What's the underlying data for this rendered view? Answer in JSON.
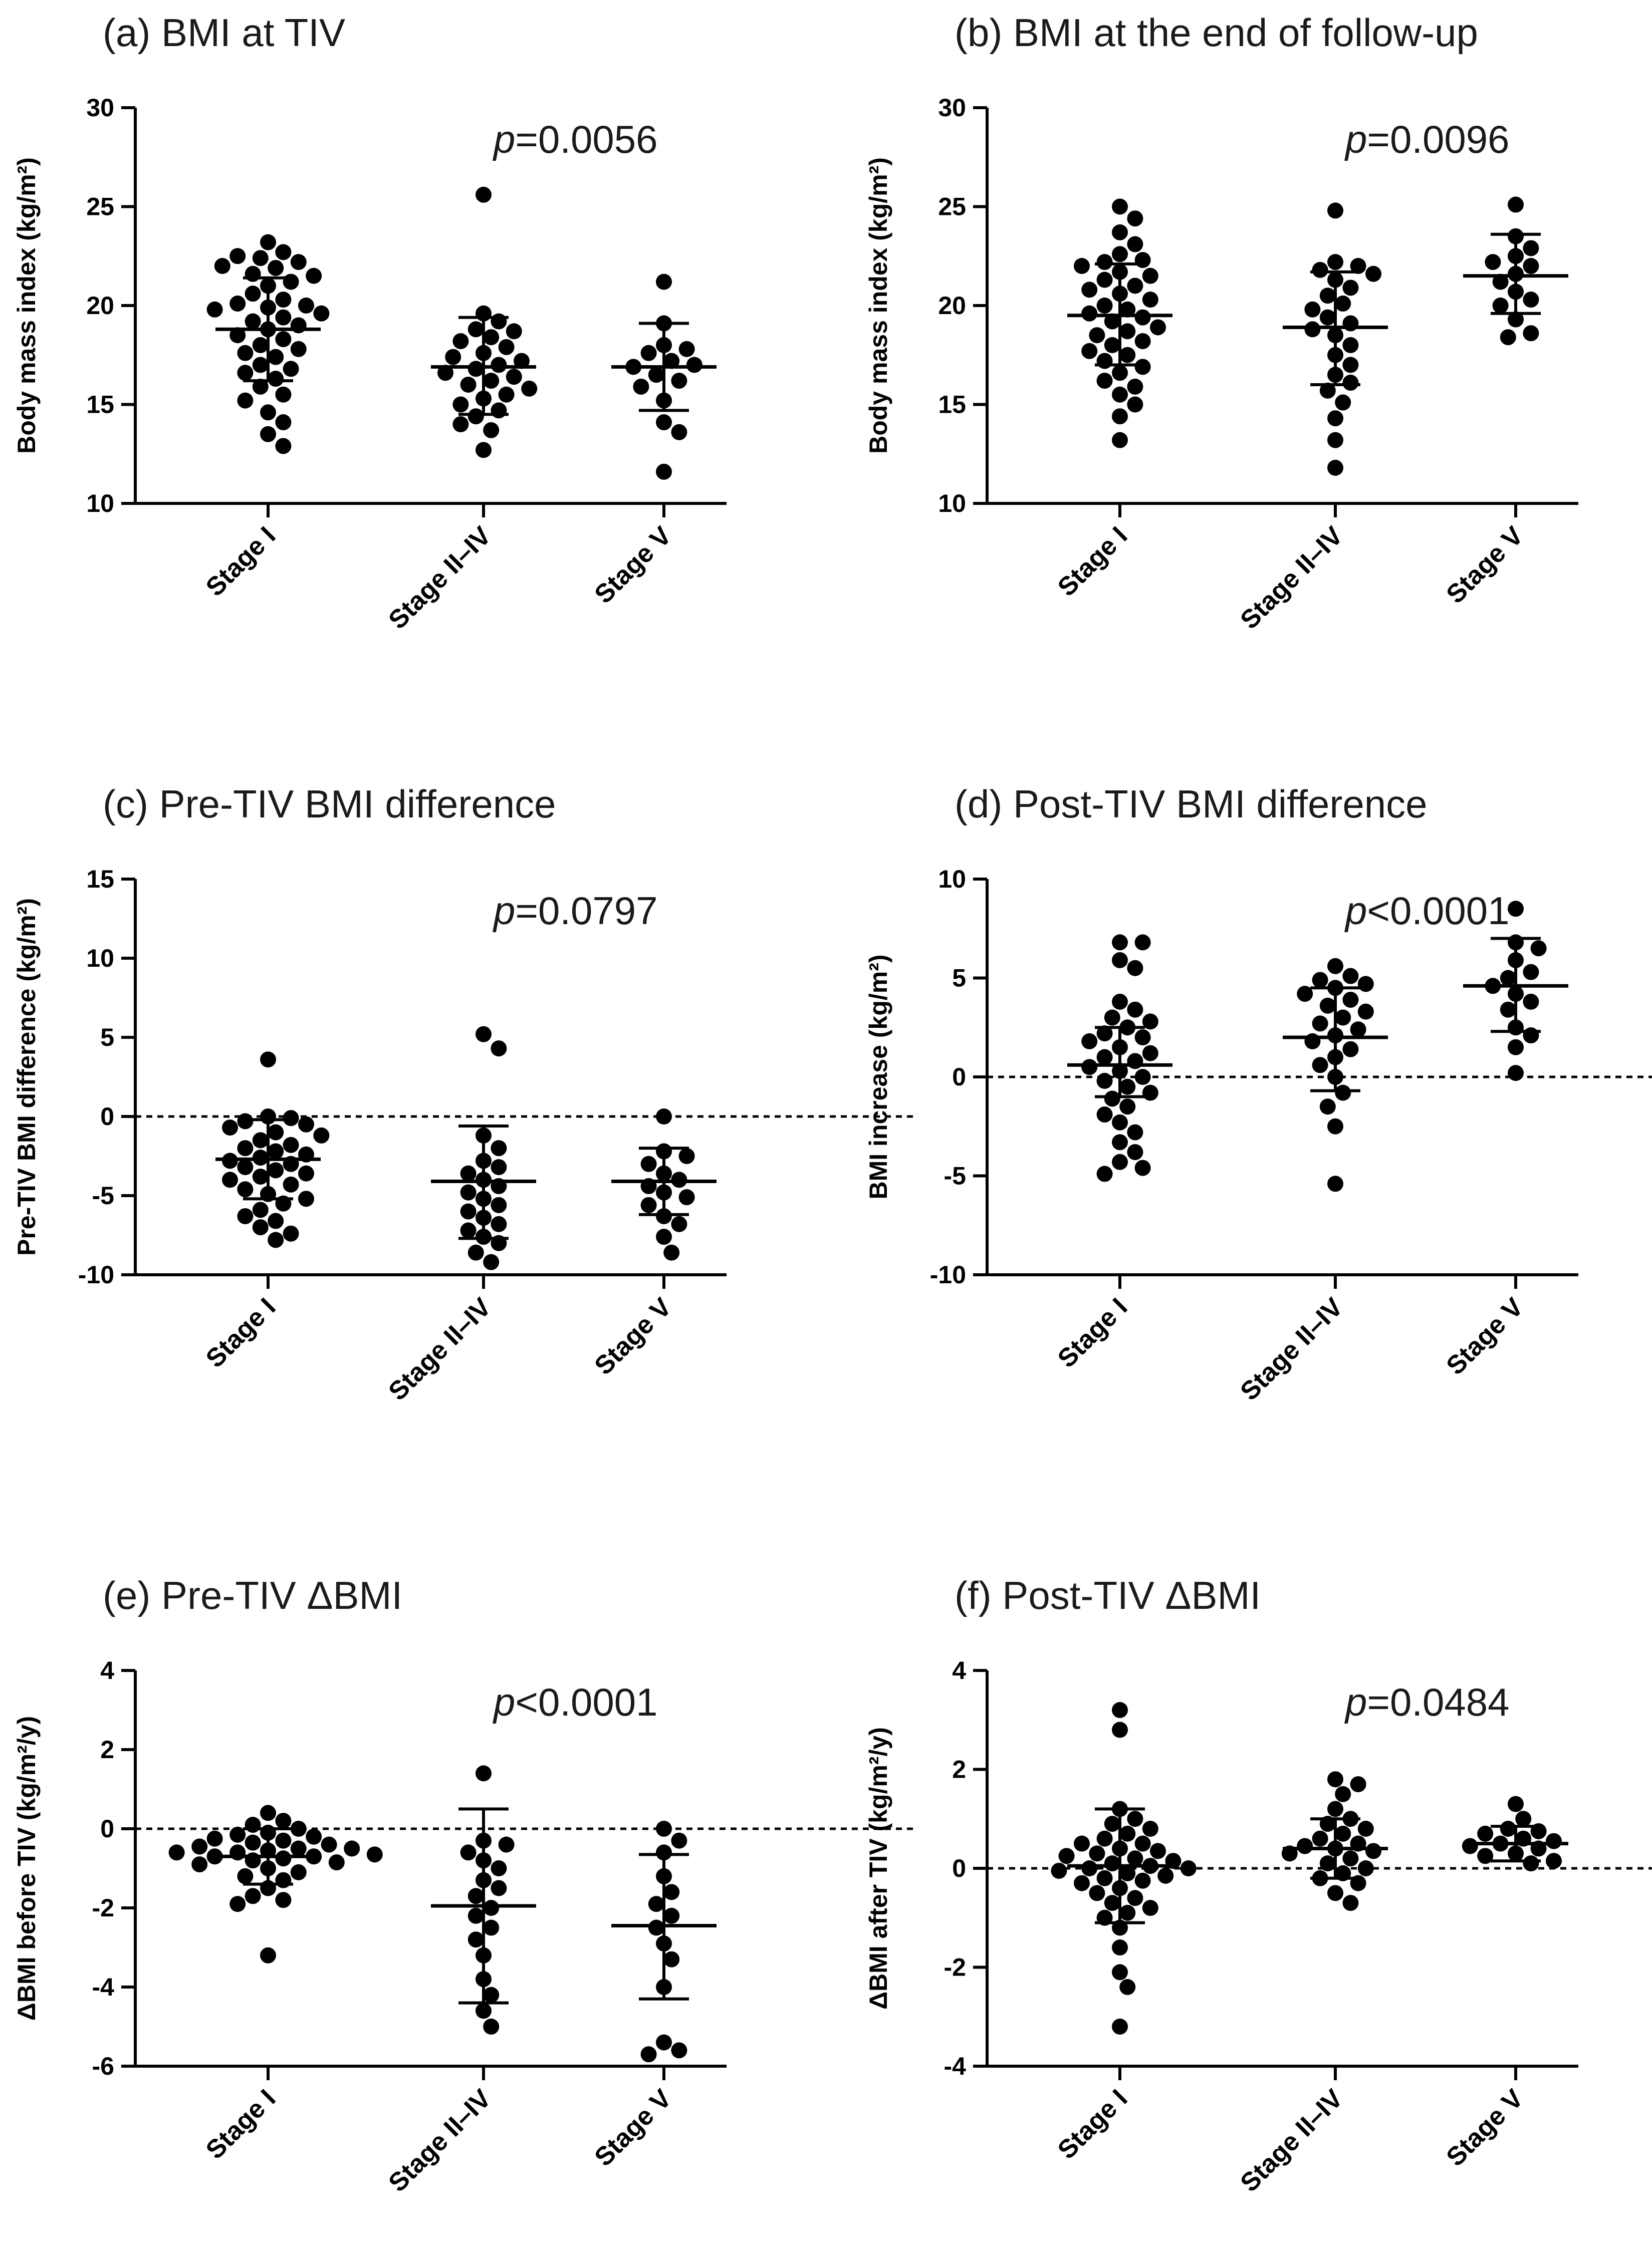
{
  "figure": {
    "background": "#ffffff",
    "point_color": "#000000"
  },
  "chart_data": [
    {
      "id": "a",
      "type": "scatter",
      "title": "(a) BMI at TIV",
      "ylabel": "Body mass index (kg/m²)",
      "ylim": [
        10,
        30
      ],
      "yticks": [
        10,
        15,
        20,
        25,
        30
      ],
      "categories": [
        "Stage I",
        "Stage II–IV",
        "Stage V"
      ],
      "p_prefix": "p",
      "p_suffix": "=0.0056",
      "reference_line": null,
      "series": [
        {
          "name": "Stage I",
          "mean": 18.8,
          "sd_low": 16.2,
          "sd_high": 21.4,
          "values": [
            23.2,
            22.7,
            22.4,
            22.5,
            22.2,
            22.0,
            21.9,
            21.6,
            21.5,
            21.2,
            21.0,
            20.6,
            20.3,
            20.1,
            20.0,
            19.9,
            19.8,
            19.6,
            19.4,
            19.2,
            19.0,
            18.8,
            18.5,
            18.3,
            18.0,
            17.8,
            17.6,
            17.4,
            17.0,
            16.8,
            16.6,
            16.3,
            15.9,
            15.5,
            15.2,
            14.6,
            14.1,
            13.5,
            12.9
          ]
        },
        {
          "name": "Stage II–IV",
          "mean": 16.9,
          "sd_low": 14.5,
          "sd_high": 19.4,
          "values": [
            25.6,
            19.6,
            19.2,
            18.8,
            18.7,
            18.4,
            18.2,
            17.9,
            17.6,
            17.4,
            17.2,
            17.0,
            16.8,
            16.6,
            16.4,
            16.2,
            16.0,
            15.8,
            15.5,
            15.3,
            15.0,
            14.7,
            14.4,
            14.0,
            13.7,
            12.7
          ]
        },
        {
          "name": "Stage V",
          "mean": 16.9,
          "sd_low": 14.7,
          "sd_high": 19.1,
          "values": [
            21.2,
            19.1,
            18.0,
            17.8,
            17.6,
            17.2,
            17.0,
            16.9,
            16.5,
            16.2,
            15.9,
            15.2,
            14.1,
            13.6,
            11.6
          ]
        }
      ]
    },
    {
      "id": "b",
      "type": "scatter",
      "title": "(b) BMI at the end of follow-up",
      "ylabel": "Body mass index (kg/m²)",
      "ylim": [
        10,
        30
      ],
      "yticks": [
        10,
        15,
        20,
        25,
        30
      ],
      "categories": [
        "Stage I",
        "Stage II–IV",
        "Stage V"
      ],
      "p_prefix": "p",
      "p_suffix": "=0.0096",
      "reference_line": null,
      "series": [
        {
          "name": "Stage I",
          "mean": 19.5,
          "sd_low": 17.0,
          "sd_high": 22.1,
          "values": [
            25.0,
            24.4,
            23.7,
            23.1,
            22.6,
            22.3,
            22.2,
            22.0,
            21.7,
            21.5,
            21.3,
            21.0,
            20.8,
            20.6,
            20.3,
            20.0,
            19.8,
            19.6,
            19.4,
            19.2,
            18.9,
            18.7,
            18.5,
            18.2,
            18.0,
            17.7,
            17.5,
            17.2,
            16.9,
            16.6,
            16.2,
            15.9,
            15.5,
            15.0,
            14.4,
            13.2
          ]
        },
        {
          "name": "Stage II–IV",
          "mean": 18.9,
          "sd_low": 16.0,
          "sd_high": 21.7,
          "values": [
            24.8,
            22.2,
            22.0,
            21.8,
            21.6,
            21.3,
            20.9,
            20.5,
            20.1,
            19.8,
            19.4,
            19.1,
            18.8,
            18.5,
            18.0,
            17.5,
            17.0,
            16.5,
            16.1,
            15.7,
            15.1,
            14.3,
            13.2,
            11.8
          ]
        },
        {
          "name": "Stage V",
          "mean": 21.5,
          "sd_low": 19.6,
          "sd_high": 23.6,
          "values": [
            25.1,
            23.5,
            22.9,
            22.5,
            22.2,
            22.0,
            21.6,
            21.2,
            20.7,
            20.3,
            20.0,
            19.3,
            18.6,
            18.4
          ]
        }
      ]
    },
    {
      "id": "c",
      "type": "scatter",
      "title": "(c) Pre-TIV BMI difference",
      "ylabel": "Pre-TIV BMI difference (kg/m²)",
      "ylim": [
        -10,
        15
      ],
      "yticks": [
        -10,
        -5,
        0,
        5,
        10,
        15
      ],
      "categories": [
        "Stage I",
        "Stage II–IV",
        "Stage V"
      ],
      "p_prefix": "p",
      "p_suffix": "=0.0797",
      "reference_line": 0,
      "series": [
        {
          "name": "Stage I",
          "mean": -2.7,
          "sd_low": -5.2,
          "sd_high": -0.2,
          "values": [
            3.6,
            0.0,
            -0.1,
            -0.3,
            -0.5,
            -0.7,
            -1.0,
            -1.2,
            -1.5,
            -1.8,
            -2.0,
            -2.2,
            -2.4,
            -2.6,
            -2.8,
            -3.0,
            -3.2,
            -3.4,
            -3.6,
            -3.8,
            -4.0,
            -4.3,
            -4.6,
            -4.9,
            -5.2,
            -5.5,
            -5.9,
            -6.3,
            -6.6,
            -7.0,
            -7.4,
            -7.8
          ]
        },
        {
          "name": "Stage II–IV",
          "mean": -4.1,
          "sd_low": -7.7,
          "sd_high": -0.6,
          "values": [
            5.2,
            4.3,
            -1.2,
            -2.0,
            -2.8,
            -3.2,
            -3.6,
            -4.0,
            -4.4,
            -4.8,
            -5.2,
            -5.6,
            -6.0,
            -6.4,
            -6.8,
            -7.2,
            -7.6,
            -8.0,
            -8.6,
            -9.2
          ]
        },
        {
          "name": "Stage V",
          "mean": -4.1,
          "sd_low": -6.2,
          "sd_high": -2.0,
          "values": [
            0.0,
            -2.2,
            -2.5,
            -3.0,
            -3.6,
            -4.0,
            -4.4,
            -4.8,
            -5.1,
            -5.6,
            -6.3,
            -6.8,
            -7.6,
            -8.6
          ]
        }
      ]
    },
    {
      "id": "d",
      "type": "scatter",
      "title": "(d) Post-TIV BMI difference",
      "ylabel": "BMI increase (kg/m²)",
      "ylim": [
        -10,
        10
      ],
      "yticks": [
        -10,
        -5,
        0,
        5,
        10
      ],
      "categories": [
        "Stage I",
        "Stage II–IV",
        "Stage V"
      ],
      "p_prefix": "p",
      "p_suffix": "<0.0001",
      "reference_line": 0,
      "series": [
        {
          "name": "Stage I",
          "mean": 0.6,
          "sd_low": -1.0,
          "sd_high": 2.5,
          "values": [
            6.8,
            6.8,
            5.9,
            5.5,
            3.8,
            3.4,
            3.0,
            2.8,
            2.5,
            2.2,
            2.0,
            1.8,
            1.5,
            1.2,
            1.0,
            0.8,
            0.5,
            0.3,
            0.0,
            -0.2,
            -0.5,
            -0.8,
            -1.1,
            -1.5,
            -1.9,
            -2.3,
            -2.8,
            -3.3,
            -3.8,
            -4.3,
            -4.6,
            -4.9
          ]
        },
        {
          "name": "Stage II–IV",
          "mean": 2.0,
          "sd_low": -0.7,
          "sd_high": 4.5,
          "values": [
            5.6,
            5.1,
            4.9,
            4.7,
            4.5,
            4.2,
            3.9,
            3.6,
            3.3,
            3.0,
            2.7,
            2.4,
            2.1,
            1.8,
            1.4,
            1.0,
            0.6,
            0.0,
            -0.8,
            -1.5,
            -2.5,
            -5.4
          ]
        },
        {
          "name": "Stage V",
          "mean": 4.6,
          "sd_low": 2.3,
          "sd_high": 7.0,
          "values": [
            8.5,
            6.8,
            6.5,
            5.9,
            5.3,
            5.0,
            4.6,
            4.2,
            3.8,
            3.4,
            2.5,
            2.1,
            1.5,
            0.2
          ]
        }
      ]
    },
    {
      "id": "e",
      "type": "scatter",
      "title": "(e) Pre-TIV ΔBMI",
      "ylabel": "ΔBMI before TIV (kg/m²/y)",
      "ylim": [
        -6,
        4
      ],
      "yticks": [
        -6,
        -4,
        -2,
        0,
        2,
        4
      ],
      "categories": [
        "Stage I",
        "Stage II–IV",
        "Stage V"
      ],
      "p_prefix": "p",
      "p_suffix": "<0.0001",
      "reference_line": 0,
      "series": [
        {
          "name": "Stage I",
          "mean": -0.7,
          "sd_low": -1.4,
          "sd_high": 0.0,
          "values": [
            0.4,
            0.2,
            0.1,
            0.0,
            -0.1,
            -0.15,
            -0.2,
            -0.25,
            -0.3,
            -0.35,
            -0.4,
            -0.45,
            -0.5,
            -0.5,
            -0.55,
            -0.6,
            -0.6,
            -0.65,
            -0.7,
            -0.7,
            -0.75,
            -0.8,
            -0.85,
            -0.9,
            -1.0,
            -1.1,
            -1.2,
            -1.3,
            -1.5,
            -1.7,
            -1.8,
            -1.9,
            -3.2
          ]
        },
        {
          "name": "Stage II–IV",
          "mean": -1.95,
          "sd_low": -4.4,
          "sd_high": 0.5,
          "values": [
            1.4,
            -0.3,
            -0.4,
            -0.6,
            -0.8,
            -1.0,
            -1.3,
            -1.5,
            -1.7,
            -2.0,
            -2.2,
            -2.5,
            -2.8,
            -3.2,
            -3.8,
            -4.2,
            -4.6,
            -5.0
          ]
        },
        {
          "name": "Stage V",
          "mean": -2.45,
          "sd_low": -4.3,
          "sd_high": -0.65,
          "values": [
            0.0,
            -0.3,
            -0.6,
            -1.2,
            -1.6,
            -1.9,
            -2.2,
            -2.5,
            -2.9,
            -3.3,
            -4.0,
            -5.4,
            -5.6,
            -5.7
          ]
        }
      ]
    },
    {
      "id": "f",
      "type": "scatter",
      "title": "(f) Post-TIV ΔBMI",
      "ylabel": "ΔBMI after TIV (kg/m²/y)",
      "ylim": [
        -4,
        4
      ],
      "yticks": [
        -4,
        -2,
        0,
        2,
        4
      ],
      "categories": [
        "Stage I",
        "Stage II–IV",
        "Stage V"
      ],
      "p_prefix": "p",
      "p_suffix": "=0.0484",
      "reference_line": 0,
      "series": [
        {
          "name": "Stage I",
          "mean": 0.05,
          "sd_low": -1.1,
          "sd_high": 1.2,
          "values": [
            3.2,
            2.8,
            1.2,
            1.0,
            0.9,
            0.8,
            0.7,
            0.6,
            0.5,
            0.5,
            0.4,
            0.35,
            0.3,
            0.25,
            0.2,
            0.15,
            0.1,
            0.05,
            0.0,
            0.0,
            -0.05,
            -0.1,
            -0.15,
            -0.2,
            -0.25,
            -0.3,
            -0.4,
            -0.5,
            -0.6,
            -0.7,
            -0.8,
            -0.9,
            -1.0,
            -1.2,
            -1.6,
            -2.1,
            -2.4,
            -3.2
          ]
        },
        {
          "name": "Stage II–IV",
          "mean": 0.4,
          "sd_low": -0.2,
          "sd_high": 1.0,
          "values": [
            1.8,
            1.7,
            1.5,
            1.2,
            1.0,
            0.9,
            0.8,
            0.7,
            0.6,
            0.5,
            0.45,
            0.4,
            0.35,
            0.3,
            0.2,
            0.1,
            0.0,
            -0.1,
            -0.2,
            -0.3,
            -0.5,
            -0.7
          ]
        },
        {
          "name": "Stage V",
          "mean": 0.5,
          "sd_low": 0.15,
          "sd_high": 0.85,
          "values": [
            1.3,
            1.0,
            0.8,
            0.75,
            0.7,
            0.6,
            0.55,
            0.5,
            0.45,
            0.4,
            0.3,
            0.25,
            0.15,
            0.1
          ]
        }
      ]
    }
  ]
}
